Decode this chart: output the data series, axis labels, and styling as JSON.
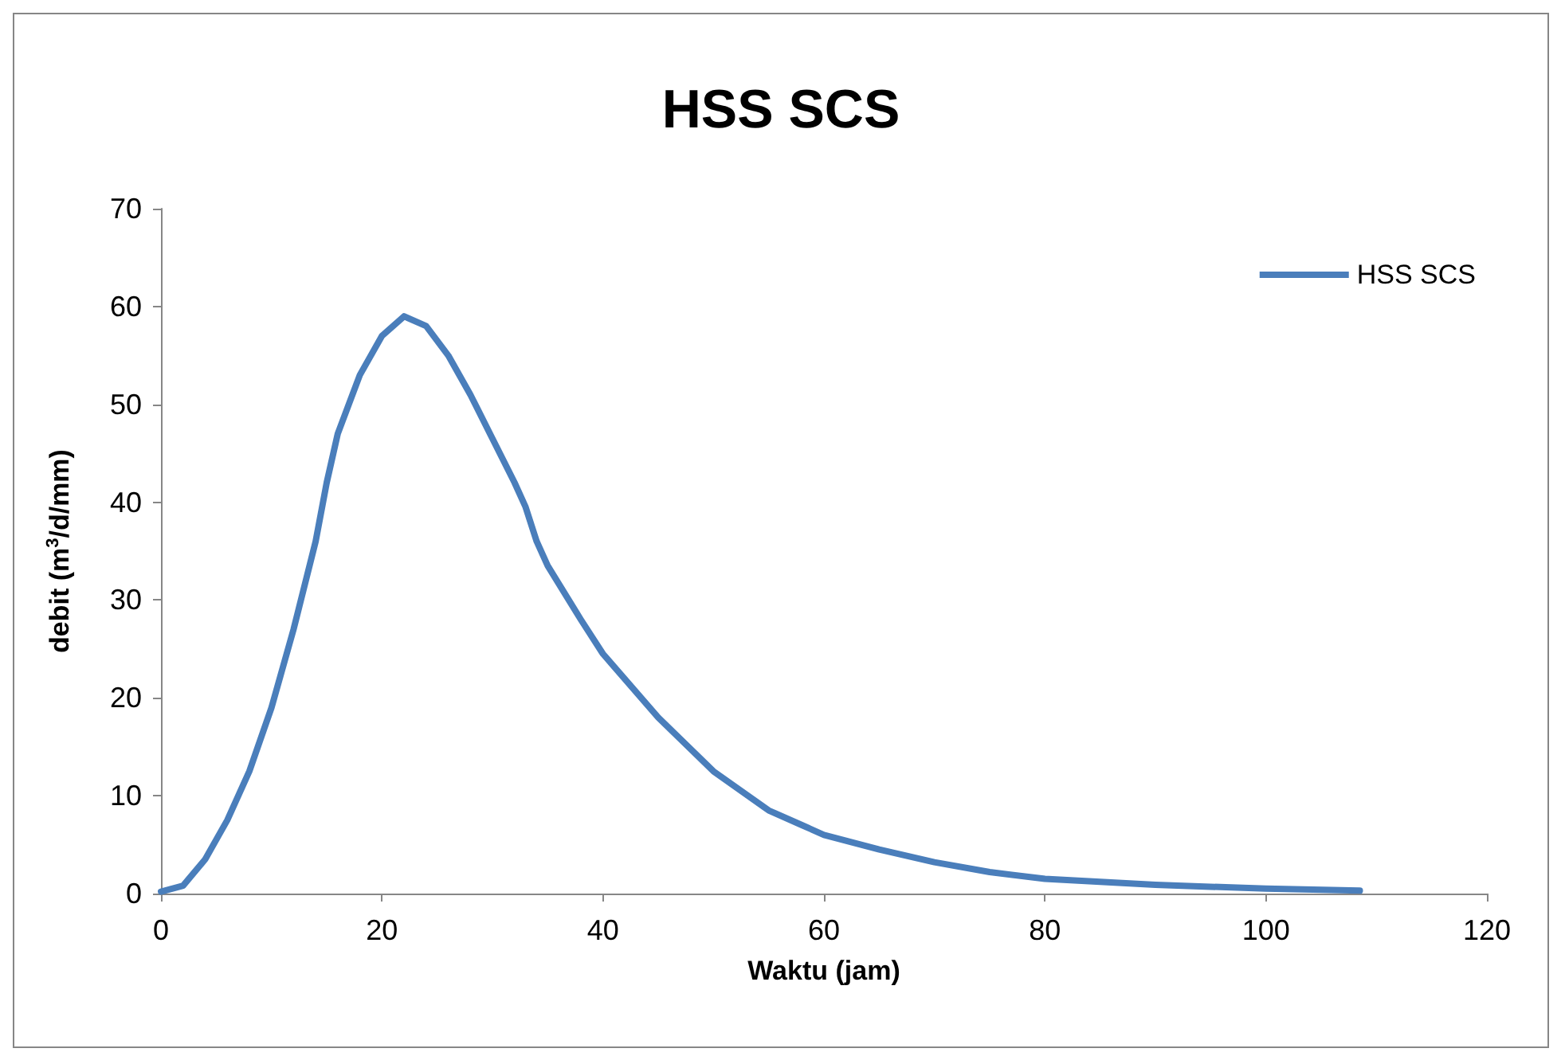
{
  "chart_data": {
    "type": "line",
    "title": "HSS SCS",
    "xlabel": "Waktu (jam)",
    "ylabel": "debit (m$^{3}$/d/mm)",
    "x": [
      0,
      2,
      4,
      6,
      8,
      10,
      12,
      14,
      15,
      16,
      18,
      20,
      22,
      24,
      26,
      28,
      30,
      32,
      33,
      34,
      35,
      38,
      40,
      45,
      50,
      55,
      58,
      60,
      65,
      70,
      75,
      80,
      90,
      100,
      108.5
    ],
    "series": [
      {
        "name": "HSS SCS",
        "color": "#4a7ebb",
        "values": [
          0.2,
          0.8,
          3.5,
          7.5,
          12.5,
          19,
          27,
          36,
          42,
          47,
          53,
          57,
          59,
          58,
          55,
          51,
          46.5,
          42,
          39.5,
          36,
          33.5,
          28,
          24.5,
          18,
          12.5,
          8.5,
          7,
          6,
          4.5,
          3.2,
          2.2,
          1.5,
          0.9,
          0.5,
          0.3
        ]
      }
    ],
    "xlim": [
      0,
      120
    ],
    "xticks": [
      0,
      20,
      40,
      60,
      80,
      100,
      120
    ],
    "ylim": [
      0,
      70
    ],
    "yticks": [
      0,
      10,
      20,
      30,
      40,
      50,
      60,
      70
    ],
    "grid": false,
    "legend": "top right",
    "marker": "none",
    "line_style": "solid"
  }
}
